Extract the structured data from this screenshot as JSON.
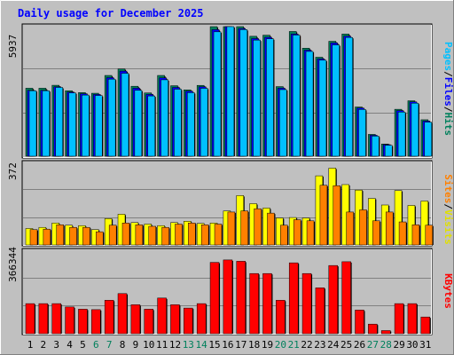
{
  "chart_data": {
    "type": "bar",
    "title": "Daily usage for December 2025",
    "categories": [
      "1",
      "2",
      "3",
      "4",
      "5",
      "6",
      "7",
      "8",
      "9",
      "10",
      "11",
      "12",
      "13",
      "14",
      "15",
      "16",
      "17",
      "18",
      "19",
      "20",
      "21",
      "22",
      "23",
      "24",
      "25",
      "26",
      "27",
      "28",
      "29",
      "30",
      "31"
    ],
    "weekend_days": [
      "6",
      "7",
      "13",
      "14",
      "20",
      "21",
      "27",
      "28"
    ],
    "panels": [
      {
        "id": "top",
        "max_label": "5937",
        "ymax": 5937,
        "series": [
          {
            "name": "Hits",
            "color": "#00805c",
            "values": [
              3115,
              3115,
              3250,
              3000,
              2915,
              2885,
              3700,
              3998,
              3205,
              2900,
              3700,
              3230,
              3040,
              3245,
              5937,
              5937,
              5937,
              5495,
              5546,
              3190,
              5715,
              4949,
              4535,
              5266,
              5598,
              2255,
              1000,
              560,
              2150,
              2540,
              1670
            ]
          },
          {
            "name": "Files",
            "color": "#0000ff",
            "values": [
              3020,
              3020,
              3180,
              2940,
              2860,
              2830,
              3600,
              3900,
              3115,
              2830,
              3590,
              3150,
              2980,
              3180,
              5800,
              5937,
              5850,
              5390,
              5450,
              3120,
              5600,
              4860,
              4460,
              5190,
              5500,
              2210,
              960,
              530,
              2090,
              2490,
              1610
            ]
          },
          {
            "name": "Pages",
            "color": "#00c0ff",
            "values": [
              3000,
              3000,
              3150,
              2900,
              2800,
              2780,
              3530,
              3800,
              3020,
              2760,
              3500,
              3070,
              2910,
              3110,
              5700,
              5937,
              5800,
              5320,
              5380,
              3050,
              5550,
              4800,
              4400,
              5100,
              5440,
              2140,
              920,
              500,
              2020,
              2430,
              1560
            ]
          }
        ]
      },
      {
        "id": "middle",
        "max_label": "372",
        "ymax": 372,
        "series": [
          {
            "name": "Visits",
            "color": "#ffff00",
            "values": [
              75,
              80,
              100,
              90,
              88,
              70,
              120,
              140,
              102,
              95,
              88,
              102,
              108,
              98,
              100,
              155,
              225,
              188,
              168,
              123,
              125,
              123,
              315,
              350,
              275,
              250,
              212,
              182,
              248,
              180,
              200
            ]
          },
          {
            "name": "Sites",
            "color": "#ff8000",
            "values": [
              70,
              72,
              92,
              80,
              80,
              60,
              90,
              100,
              92,
              85,
              80,
              95,
              100,
              92,
              95,
              150,
              155,
              165,
              145,
              90,
              115,
              110,
              272,
              270,
              150,
              160,
              110,
              150,
              105,
              92,
              90
            ]
          }
        ]
      },
      {
        "id": "bottom",
        "max_label": "366344",
        "ymax": 366344,
        "series": [
          {
            "name": "KBytes",
            "color": "#ff0000",
            "values": [
              135000,
              135000,
              135000,
              120000,
              110000,
              108000,
              150000,
              180000,
              130000,
              110000,
              160000,
              130000,
              115000,
              135000,
              320000,
              331000,
              325000,
              270000,
              270000,
              150000,
              318000,
              270000,
              206000,
              306000,
              323000,
              106000,
              43000,
              14000,
              135000,
              135000,
              75000
            ]
          }
        ]
      }
    ],
    "right_labels": [
      {
        "panel": "top",
        "parts": [
          {
            "text": "Pages",
            "color": "#00c0ff"
          },
          {
            "text": "/",
            "color": "#000000"
          },
          {
            "text": "Files",
            "color": "#0000ff"
          },
          {
            "text": "/",
            "color": "#000000"
          },
          {
            "text": "Hits",
            "color": "#00805c"
          }
        ]
      },
      {
        "panel": "middle",
        "parts": [
          {
            "text": "Sites",
            "color": "#ff8000"
          },
          {
            "text": "/",
            "color": "#000000"
          },
          {
            "text": "Visits",
            "color": "#e0e000"
          }
        ]
      },
      {
        "panel": "bottom",
        "parts": [
          {
            "text": "KBytes",
            "color": "#ff0000"
          }
        ]
      }
    ]
  }
}
